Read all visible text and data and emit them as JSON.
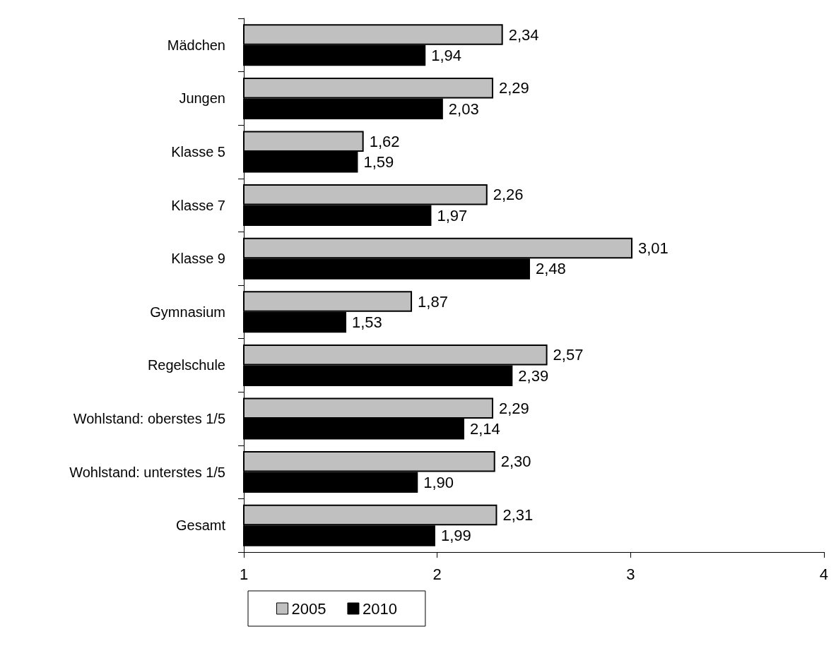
{
  "chart_data": {
    "type": "bar",
    "orientation": "horizontal",
    "categories": [
      "Mädchen",
      "Jungen",
      "Klasse 5",
      "Klasse 7",
      "Klasse 9",
      "Gymnasium",
      "Regelschule",
      "Wohlstand: oberstes 1/5",
      "Wohlstand: unterstes 1/5",
      "Gesamt"
    ],
    "series": [
      {
        "name": "2005",
        "color": "#c0c0c0",
        "values": [
          2.34,
          2.29,
          1.62,
          2.26,
          3.01,
          1.87,
          2.57,
          2.29,
          2.3,
          2.31
        ],
        "value_labels": [
          "2,34",
          "2,29",
          "1,62",
          "2,26",
          "3,01",
          "1,87",
          "2,57",
          "2,29",
          "2,30",
          "2,31"
        ]
      },
      {
        "name": "2010",
        "color": "#000000",
        "values": [
          1.94,
          2.03,
          1.59,
          1.97,
          2.48,
          1.53,
          2.39,
          2.14,
          1.9,
          1.99
        ],
        "value_labels": [
          "1,94",
          "2,03",
          "1,59",
          "1,97",
          "2,48",
          "1,53",
          "2,39",
          "2,14",
          "1,90",
          "1,99"
        ]
      }
    ],
    "xlim": [
      1,
      4
    ],
    "xticks": [
      1,
      2,
      3,
      4
    ],
    "grid": false,
    "legend": "bottom"
  }
}
